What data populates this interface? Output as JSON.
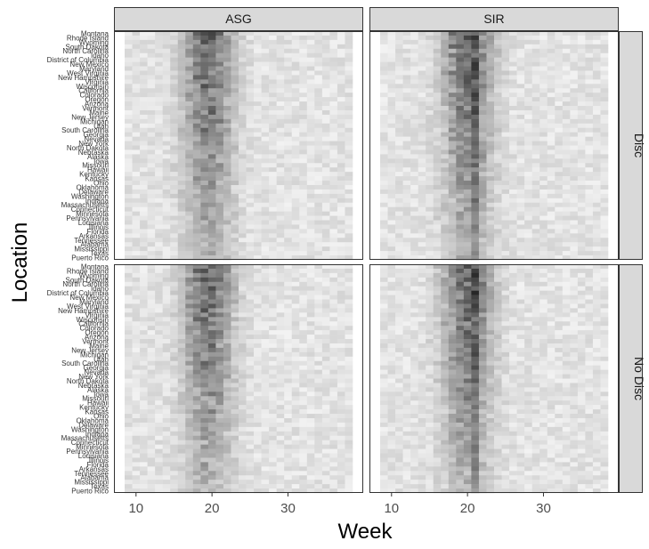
{
  "chart_data": {
    "type": "heatmap",
    "xlabel": "Week",
    "ylabel": "Location",
    "col_facets": [
      "ASG",
      "SIR"
    ],
    "row_facets": [
      "Disc",
      "No Disc"
    ],
    "x_ticks": [
      10,
      20,
      30
    ],
    "x_range": [
      9,
      38
    ],
    "colors": {
      "low": "#ffffff",
      "high": "#000000",
      "strip": "#d9d9d9",
      "panel_border": "#333333"
    },
    "y_tick_labels": [
      "Montana",
      "Rhode Island",
      "Wyoming",
      "South Dakota",
      "North Carolina",
      "Idaho",
      "District of Columbia",
      "New Mexico",
      "Maryland",
      "West Virginia",
      "New Hampshire",
      "Virginia",
      "Wisconsin",
      "California",
      "Colorado",
      "Oregon",
      "Arizona",
      "Vermont",
      "Maine",
      "New Jersey",
      "Michigan",
      "Utah",
      "South Carolina",
      "Georgia",
      "Nevada",
      "New York",
      "North Dakota",
      "Nebraska",
      "Alaska",
      "Iowa",
      "Missouri",
      "Hawaii",
      "Kentucky",
      "Kansas",
      "Ohio",
      "Oklahoma",
      "Delaware",
      "Washington",
      "Indiana",
      "Massachusetts",
      "Connecticut",
      "Minnesota",
      "Pennsylvania",
      "Louisiana",
      "Illinois",
      "Florida",
      "Arkansas",
      "Tennessee",
      "Alabama",
      "Mississippi",
      "Texas",
      "Puerto Rico"
    ]
  }
}
